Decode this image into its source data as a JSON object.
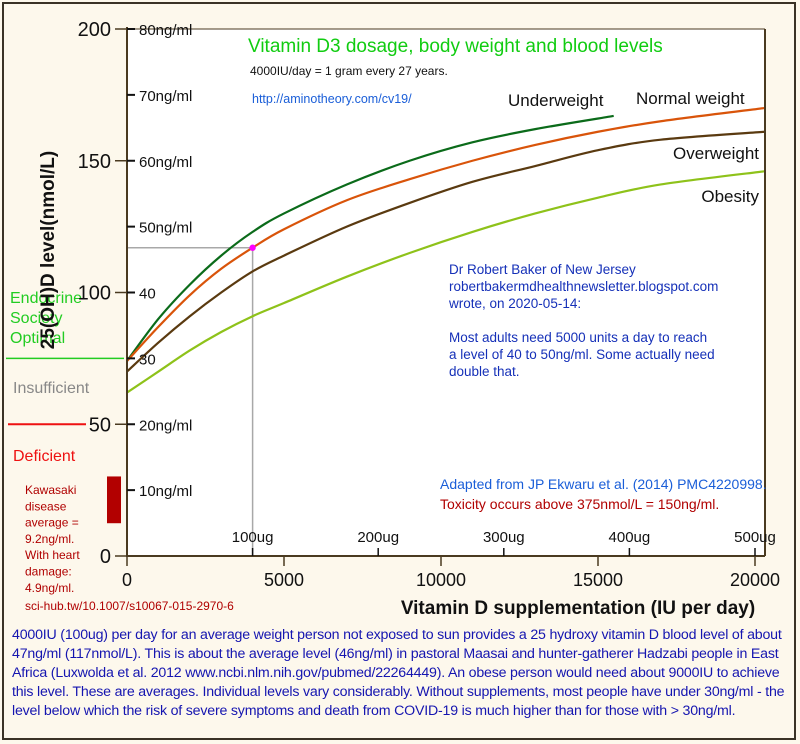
{
  "chart_data": {
    "type": "line",
    "title": "Vitamin D3 dosage, body weight and blood levels",
    "subtitle": "4000IU/day = 1 gram every 27 years.",
    "link": "http://aminotheory.com/cv19/",
    "xlabel": "Vitamin D supplementation (IU per day)",
    "ylabel": "25(OH)D level(nmol/L)",
    "xlim": [
      0,
      20300
    ],
    "ylim": [
      0,
      200
    ],
    "grid": false,
    "x_ticks": [
      0,
      5000,
      10000,
      15000,
      20000
    ],
    "x_tick_labels": [
      "0",
      "5000",
      "10000",
      "15000",
      "20000"
    ],
    "x2_ticks": [
      4000,
      8000,
      12000,
      16000,
      20000
    ],
    "x2_tick_labels": [
      "100ug",
      "200ug",
      "300ug",
      "400ug",
      "500ug"
    ],
    "y_ticks": [
      0,
      50,
      100,
      150,
      200
    ],
    "y_tick_labels": [
      "0",
      "50",
      "100",
      "150",
      "200"
    ],
    "y2_ticks": [
      25,
      50,
      75,
      100,
      125,
      150,
      175,
      200
    ],
    "y2_tick_labels": [
      "10ng/ml",
      "20ng/ml",
      "30",
      "40",
      "50ng/ml",
      "60ng/ml",
      "70ng/ml",
      "80ng/ml"
    ],
    "series": [
      {
        "name": "Underweight",
        "color": "#0b6b1a",
        "x": [
          0,
          1000,
          2000,
          3000,
          4000,
          5000,
          7000,
          9000,
          11000,
          13000,
          15500
        ],
        "y": [
          74,
          90,
          103,
          114,
          123,
          130,
          141,
          150,
          157,
          162,
          167
        ]
      },
      {
        "name": "Normal weight",
        "color": "#d9540a",
        "x": [
          0,
          1000,
          2000,
          3000,
          4000,
          5000,
          7000,
          9000,
          11000,
          13000,
          15000,
          17000,
          20300
        ],
        "y": [
          74,
          87,
          99,
          109,
          117,
          124,
          135,
          143,
          150,
          156,
          161,
          165,
          170
        ]
      },
      {
        "name": "Overweight",
        "color": "#5a3a10",
        "x": [
          0,
          1000,
          2000,
          3000,
          4000,
          5000,
          7000,
          9000,
          11000,
          13000,
          15000,
          17000,
          20300
        ],
        "y": [
          70,
          81,
          91,
          100,
          108,
          114,
          125,
          134,
          142,
          148,
          154,
          158,
          161
        ]
      },
      {
        "name": "Obesity",
        "color": "#8ec21a",
        "x": [
          0,
          1000,
          2000,
          3000,
          4000,
          5000,
          7000,
          9000,
          11000,
          13000,
          15000,
          17000,
          20300
        ],
        "y": [
          62,
          70,
          78,
          85,
          91,
          96,
          106,
          115,
          123,
          130,
          136,
          141,
          146
        ]
      }
    ],
    "marker": {
      "x": 4000,
      "y": 117,
      "color": "#ff00ff"
    },
    "bands": [
      {
        "label": "Endocrine Society Optimal",
        "threshold": 75,
        "color": "#22cc22"
      },
      {
        "label": "Insufficient",
        "color": "#888888"
      },
      {
        "label": "Deficient",
        "threshold": 50,
        "color": "#ee1111"
      }
    ],
    "kawasaki_bar": {
      "from": 12.25,
      "to": 30,
      "color": "#b20000"
    },
    "annotations": {
      "baker": [
        "Dr Robert Baker of New Jersey",
        "robertbakermdhealthnewsletter.blogspot.com",
        "wrote, on 2020-05-14:",
        "",
        "Most adults need 5000 units a day to reach",
        "a level of 40 to 50ng/ml.  Some actually need",
        "double that."
      ],
      "source": "Adapted from JP Ekwaru et al. (2014) PMC4220998.",
      "toxicity": "Toxicity occurs above 375nmol/L = 150ng/ml.",
      "kawasaki": [
        "Kawasaki",
        "disease",
        "average =",
        "9.2ng/ml.",
        "With heart",
        "damage:",
        "4.9ng/ml."
      ],
      "kawasaki_ref": "sci-hub.tw/10.1007/s10067-015-2970-6"
    }
  },
  "caption": "4000IU (100ug) per day for an average weight person not exposed to sun provides a 25 hydroxy vitamin D blood level of about 47ng/ml (117nmol/L).  This is about the average level (46ng/ml) in pastoral Maasai and hunter-gatherer Hadzabi people in East Africa (Luxwolda et al. 2012 www.ncbi.nlm.nih.gov/pubmed/22264449). An obese person would need about 9000IU to achieve this level.  These are averages.  Individual levels vary considerably.  Without supplements, most people have under 30ng/ml - the level below which the risk of severe symptoms and death from COVID-19 is much higher than for those with > 30ng/ml."
}
